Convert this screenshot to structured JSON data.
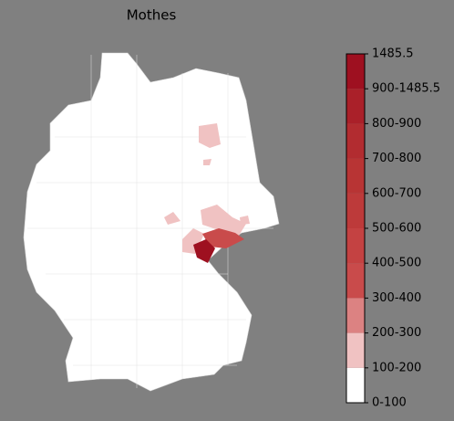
{
  "title": "Mothes",
  "colorbar": {
    "labels": [
      "0-100",
      "100-200",
      "200-300",
      "300-400",
      "400-500",
      "500-600",
      "600-700",
      "700-800",
      "800-900",
      "900-1485.5",
      "1485.5"
    ],
    "colors": [
      "#ffffff",
      "#f0c2c2",
      "#dc8282",
      "#c94b4b",
      "#c44242",
      "#bd3a3a",
      "#b83434",
      "#b22c30",
      "#aa2029",
      "#9e1020"
    ]
  }
}
